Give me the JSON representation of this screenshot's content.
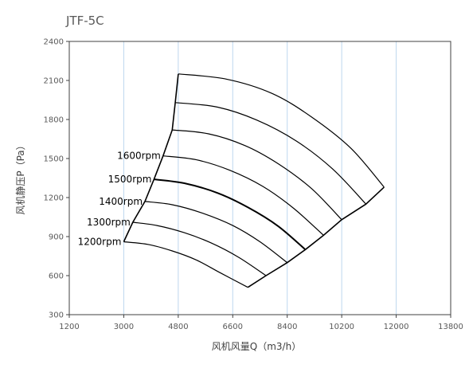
{
  "chart_data": {
    "type": "line",
    "title": "JTF-5C",
    "xlabel": "风机风量Q（m3/h）",
    "ylabel": "风机静压P（Pa）",
    "xlim": [
      1200,
      13800
    ],
    "ylim": [
      300,
      2400
    ],
    "xticks": [
      1200,
      3000,
      4800,
      6600,
      8400,
      10200,
      12000,
      13800
    ],
    "yticks": [
      300,
      600,
      900,
      1200,
      1500,
      1800,
      2100,
      2400
    ],
    "grid": "vertical",
    "legend": "none",
    "series": [
      {
        "name": "1200rpm",
        "x": [
          3000,
          3800,
          4600,
          5400,
          6200,
          7100
        ],
        "y": [
          860,
          840,
          790,
          720,
          620,
          510
        ]
      },
      {
        "name": "1300rpm",
        "x": [
          3300,
          4100,
          5000,
          5900,
          6800,
          7700
        ],
        "y": [
          1010,
          985,
          930,
          850,
          740,
          600
        ]
      },
      {
        "name": "1400rpm",
        "x": [
          3700,
          4600,
          5600,
          6600,
          7500,
          8400
        ],
        "y": [
          1170,
          1145,
          1080,
          985,
          860,
          700
        ]
      },
      {
        "name": "1500rpm",
        "x": [
          4000,
          5000,
          6100,
          7100,
          8100,
          9000
        ],
        "y": [
          1340,
          1310,
          1235,
          1125,
          980,
          800
        ]
      },
      {
        "name": "1600rpm",
        "x": [
          4300,
          5400,
          6500,
          7600,
          8600,
          9600
        ],
        "y": [
          1520,
          1490,
          1410,
          1285,
          1120,
          910
        ]
      },
      {
        "name": "",
        "x": [
          4600,
          5800,
          7000,
          8100,
          9200,
          10200
        ],
        "y": [
          1720,
          1690,
          1600,
          1460,
          1270,
          1030
        ]
      },
      {
        "name": "",
        "x": [
          4700,
          6100,
          7400,
          8700,
          9900,
          11000
        ],
        "y": [
          1930,
          1895,
          1795,
          1635,
          1420,
          1150
        ]
      },
      {
        "name": "",
        "x": [
          4800,
          6400,
          7900,
          9200,
          10500,
          11600
        ],
        "y": [
          2150,
          2110,
          2000,
          1820,
          1580,
          1280
        ]
      }
    ],
    "envelope_left": {
      "x": [
        3000,
        3300,
        3700,
        4000,
        4300,
        4600,
        4700,
        4800
      ],
      "y": [
        860,
        1010,
        1170,
        1340,
        1520,
        1720,
        1930,
        2150
      ]
    },
    "envelope_right": {
      "x": [
        7100,
        7700,
        8400,
        9000,
        9600,
        10200,
        11000,
        11600
      ],
      "y": [
        510,
        600,
        700,
        800,
        910,
        1030,
        1150,
        1280
      ]
    }
  }
}
